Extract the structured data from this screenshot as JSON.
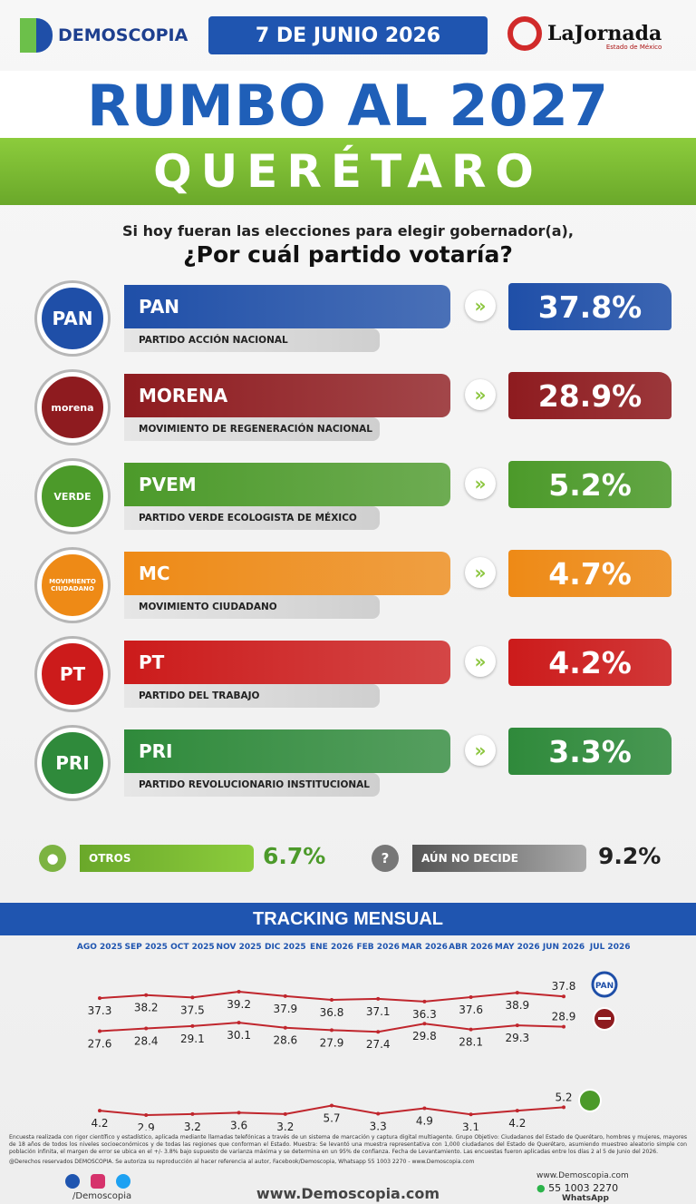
{
  "header": {
    "brand": "DEMOSCOPIA",
    "date": "7 DE JUNIO 2026",
    "partner": "LaJornada",
    "partner_sub": "Estado de México",
    "title": "RUMBO AL 2027",
    "subtitle": "QUERÉTARO"
  },
  "question": {
    "line1": "Si hoy fueran las elecciones para elegir gobernador(a),",
    "line2": "¿Por cuál partido votaría?"
  },
  "parties": [
    {
      "logo": "PAN",
      "name": "PAN",
      "full": "PARTIDO ACCIÓN NACIONAL",
      "value": "37.8%",
      "color": "#1f4fa8"
    },
    {
      "logo": "morena",
      "name": "MORENA",
      "full": "MOVIMIENTO DE REGENERACIÓN NACIONAL",
      "value": "28.9%",
      "color": "#8e1b1f"
    },
    {
      "logo": "VERDE",
      "name": "PVEM",
      "full": "PARTIDO VERDE ECOLOGISTA DE MÉXICO",
      "value": "5.2%",
      "color": "#4c9a2a"
    },
    {
      "logo": "MOVIMIENTO CIUDADANO",
      "name": "MC",
      "full": "MOVIMIENTO CIUDADANO",
      "value": "4.7%",
      "color": "#ee8a16"
    },
    {
      "logo": "PT",
      "name": "PT",
      "full": "PARTIDO DEL TRABAJO",
      "value": "4.2%",
      "color": "#cc1b1b"
    },
    {
      "logo": "PRI",
      "name": "PRI",
      "full": "PARTIDO REVOLUCIONARIO INSTITUCIONAL",
      "value": "3.3%",
      "color": "#2f8a3b"
    }
  ],
  "others": {
    "label": "OTROS",
    "value": "6.7%"
  },
  "undecided": {
    "label": "AÚN NO DECIDE",
    "value": "9.2%"
  },
  "chart_data": {
    "type": "line",
    "title": "TRACKING MENSUAL",
    "categories": [
      "AGO 2025",
      "SEP 2025",
      "OCT 2025",
      "NOV 2025",
      "DIC 2025",
      "ENE 2026",
      "FEB 2026",
      "MAR 2026",
      "ABR 2026",
      "MAY 2026",
      "JUN 2026",
      "JUL 2026"
    ],
    "series": [
      {
        "color": "#c0262d",
        "values": [
          37.3,
          38.2,
          37.5,
          39.2,
          37.9,
          36.8,
          37.1,
          36.3,
          37.6,
          38.9,
          37.8,
          null
        ]
      },
      {
        "color": "#c0262d",
        "values": [
          27.6,
          28.4,
          29.1,
          30.1,
          28.6,
          27.9,
          27.4,
          29.8,
          28.1,
          29.3,
          28.9,
          null
        ]
      },
      {
        "color": "#c0262d",
        "values": [
          4.2,
          2.9,
          3.2,
          3.6,
          3.2,
          5.7,
          3.3,
          4.9,
          3.1,
          4.2,
          5.2,
          null
        ]
      }
    ]
  },
  "footer": {
    "disclaimer": "Encuesta realizada con rigor científico y estadístico, aplicada mediante llamadas telefónicas a través de un sistema de marcación y captura digital multiagente. Grupo Objetivo: Ciudadanos del Estado de Querétaro, hombres y mujeres, mayores de 18 años de todos los niveles socioeconómicos y de todas las regiones que conforman el Estado. Muestra: Se levantó una muestra representativa con 1,000 ciudadanos del Estado de Querétaro, asumiendo muestreo aleatorio simple con población infinita, el margen de error se ubica en el +/- 3.8% bajo supuesto de varianza máxima y se determina en un 95% de confianza. Fecha de Levantamiento. Las encuestas fueron aplicadas entre los días 2 al 5 de Junio del 2026.",
    "rights": "@Derechos reservados DEMOSCOPIA. Se autoriza su reproducción al hacer referencia al autor, Facebook/Demoscopia, Whatsapp 55 1003 2270 - www.Demoscopia.com",
    "social": "/Demoscopia",
    "website": "www.Demoscopia.com",
    "website_small": "www.Demoscopia.com",
    "phone": "55 1003 2270",
    "whatsapp": "WhatsApp"
  }
}
